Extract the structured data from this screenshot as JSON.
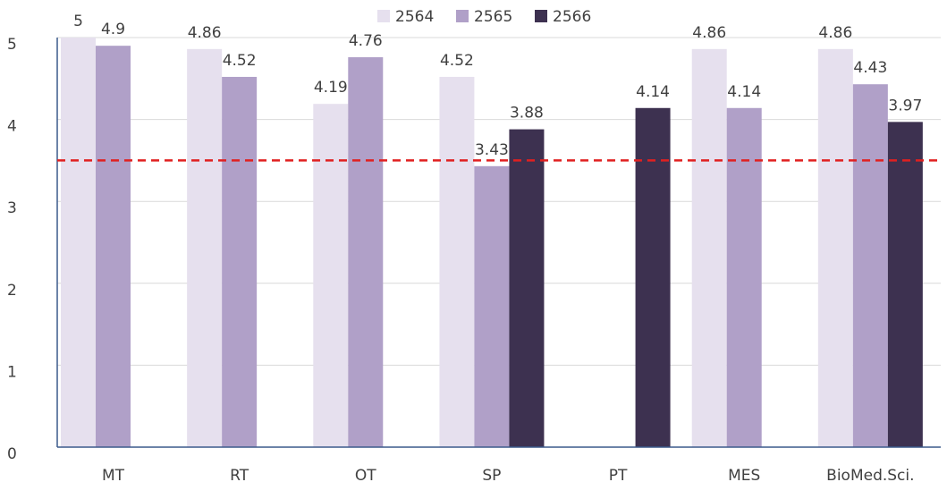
{
  "chart_data": {
    "type": "bar",
    "categories": [
      "MT",
      "RT",
      "OT",
      "SP",
      "PT",
      "MES",
      "BioMed.Sci."
    ],
    "series": [
      {
        "name": "2564",
        "color": "#e6e0ee",
        "values": [
          5,
          4.86,
          4.19,
          4.52,
          null,
          4.86,
          4.86
        ]
      },
      {
        "name": "2565",
        "color": "#b0a0c8",
        "values": [
          4.9,
          4.52,
          4.76,
          3.43,
          null,
          4.14,
          4.43
        ]
      },
      {
        "name": "2566",
        "color": "#3d3150",
        "values": [
          null,
          null,
          null,
          3.88,
          4.14,
          null,
          3.97
        ]
      }
    ],
    "ylim": [
      0,
      5
    ],
    "yticks": [
      0,
      1,
      2,
      3,
      4,
      5
    ],
    "grid": true,
    "reference_line": {
      "value": 3.5,
      "color": "#e02020"
    },
    "legend": "top"
  }
}
